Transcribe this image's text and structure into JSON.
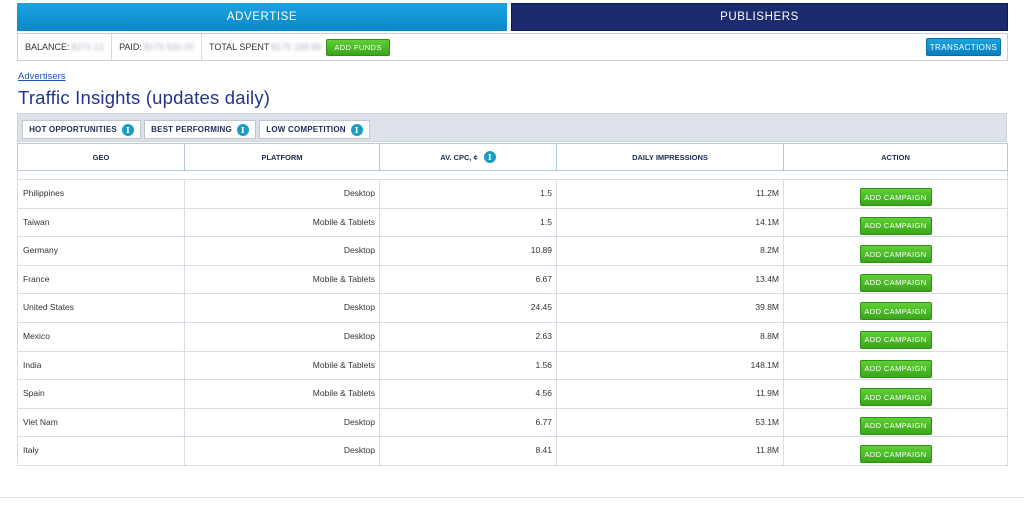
{
  "nav": {
    "advertise": "ADVERTISE",
    "publishers": "PUBLISHERS"
  },
  "balance_bar": {
    "balance_label": "BALANCE:",
    "balance_value": "$371.12",
    "paid_label": "PAID:",
    "paid_value": "$175 530.00",
    "total_spent_label": "TOTAL SPENT",
    "total_spent_value": "$175 158.88",
    "add_funds": "ADD FUNDS",
    "transactions": "TRANSACTIONS"
  },
  "breadcrumb": "Advertisers",
  "page_title": "Traffic Insights (updates daily)",
  "tabs": [
    {
      "label": "HOT OPPORTUNITIES",
      "active": true
    },
    {
      "label": "BEST PERFORMING",
      "active": false
    },
    {
      "label": "LOW COMPETITION",
      "active": false
    }
  ],
  "table": {
    "headers": {
      "geo": "GEO",
      "platform": "PLATFORM",
      "cpc": "AV. CPC, ¢",
      "impressions": "DAILY IMPRESSIONS",
      "action": "ACTION"
    },
    "action_label": "ADD CAMPAIGN",
    "rows": [
      {
        "geo": "Philippines",
        "platform": "Desktop",
        "cpc": "1.5",
        "impressions": "11.2M"
      },
      {
        "geo": "Taiwan",
        "platform": "Mobile & Tablets",
        "cpc": "1.5",
        "impressions": "14.1M"
      },
      {
        "geo": "Germany",
        "platform": "Desktop",
        "cpc": "10.89",
        "impressions": "8.2M"
      },
      {
        "geo": "France",
        "platform": "Mobile & Tablets",
        "cpc": "6.67",
        "impressions": "13.4M"
      },
      {
        "geo": "United States",
        "platform": "Desktop",
        "cpc": "24.45",
        "impressions": "39.8M"
      },
      {
        "geo": "Mexico",
        "platform": "Desktop",
        "cpc": "2.63",
        "impressions": "8.8M"
      },
      {
        "geo": "India",
        "platform": "Mobile & Tablets",
        "cpc": "1.56",
        "impressions": "148.1M"
      },
      {
        "geo": "Spain",
        "platform": "Mobile & Tablets",
        "cpc": "4.56",
        "impressions": "11.9M"
      },
      {
        "geo": "Viet Nam",
        "platform": "Desktop",
        "cpc": "6.77",
        "impressions": "53.1M"
      },
      {
        "geo": "Italy",
        "platform": "Desktop",
        "cpc": "8.41",
        "impressions": "11.8M"
      }
    ]
  },
  "icons": {
    "info": "info-icon",
    "info_glyph": "i"
  },
  "colors": {
    "advertise_tab": "#0a88c8",
    "publishers_tab": "#1c2a6e",
    "action_green": "#3aa51b",
    "title_blue": "#25348a",
    "info_blue": "#1a9cc4"
  }
}
